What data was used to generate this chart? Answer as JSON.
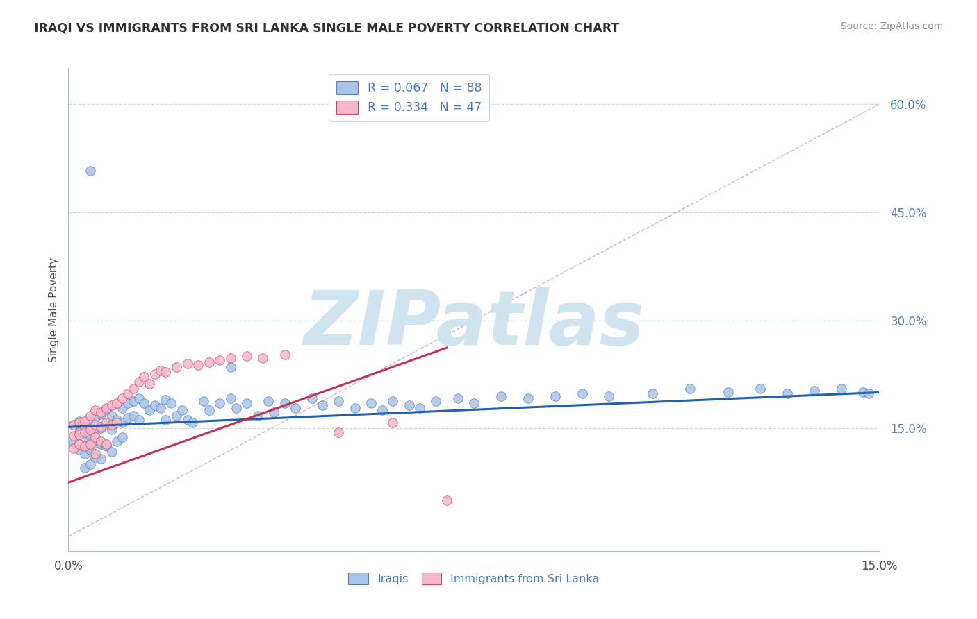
{
  "title": "IRAQI VS IMMIGRANTS FROM SRI LANKA SINGLE MALE POVERTY CORRELATION CHART",
  "source": "Source: ZipAtlas.com",
  "ylabel": "Single Male Poverty",
  "xlim": [
    0.0,
    0.15
  ],
  "ylim": [
    -0.02,
    0.65
  ],
  "ytick_vals": [
    0.15,
    0.3,
    0.45,
    0.6
  ],
  "ytick_labels": [
    "15.0%",
    "30.0%",
    "45.0%",
    "60.0%"
  ],
  "xtick_vals": [
    0.0,
    0.15
  ],
  "xtick_labels": [
    "0.0%",
    "15.0%"
  ],
  "iraqi_color": "#a8c4e8",
  "srilanka_color": "#f5b8c8",
  "iraqi_edge_color": "#5080c0",
  "srilanka_edge_color": "#d04868",
  "iraqi_trend_color": "#2060b0",
  "srilanka_trend_color": "#c83050",
  "diagonal_color": "#e0a0b0",
  "background_color": "#ffffff",
  "grid_color": "#c8d8e8",
  "watermark": "ZIPatlas",
  "watermark_color": "#d0e4f0",
  "legend_label_iraqi": "R = 0.067   N = 88",
  "legend_label_srilanka": "R = 0.334   N = 47",
  "legend_label_iraqi_short": "Iraqis",
  "legend_label_srilanka_short": "Immigrants from Sri Lanka",
  "legend_text_color": "#4878c8",
  "title_color": "#303030",
  "source_color": "#909090",
  "ylabel_color": "#505050",
  "ytick_color": "#5080c0",
  "xtick_color": "#505050",
  "iraqi_x": [
    0.001,
    0.001,
    0.002,
    0.002,
    0.002,
    0.003,
    0.003,
    0.003,
    0.003,
    0.004,
    0.004,
    0.004,
    0.004,
    0.005,
    0.005,
    0.005,
    0.005,
    0.006,
    0.006,
    0.006,
    0.006,
    0.007,
    0.007,
    0.007,
    0.008,
    0.008,
    0.008,
    0.009,
    0.009,
    0.01,
    0.01,
    0.01,
    0.011,
    0.011,
    0.012,
    0.012,
    0.013,
    0.013,
    0.014,
    0.015,
    0.016,
    0.017,
    0.018,
    0.018,
    0.019,
    0.02,
    0.021,
    0.022,
    0.023,
    0.025,
    0.026,
    0.028,
    0.03,
    0.031,
    0.033,
    0.035,
    0.037,
    0.038,
    0.04,
    0.042,
    0.045,
    0.047,
    0.05,
    0.053,
    0.056,
    0.058,
    0.06,
    0.063,
    0.065,
    0.068,
    0.072,
    0.075,
    0.08,
    0.085,
    0.09,
    0.095,
    0.1,
    0.108,
    0.115,
    0.122,
    0.128,
    0.133,
    0.138,
    0.143,
    0.147,
    0.148,
    0.004,
    0.03
  ],
  "iraqi_y": [
    0.155,
    0.13,
    0.16,
    0.145,
    0.12,
    0.15,
    0.135,
    0.115,
    0.095,
    0.16,
    0.14,
    0.12,
    0.1,
    0.165,
    0.148,
    0.13,
    0.11,
    0.17,
    0.15,
    0.128,
    0.108,
    0.175,
    0.155,
    0.125,
    0.168,
    0.148,
    0.118,
    0.162,
    0.132,
    0.178,
    0.158,
    0.138,
    0.185,
    0.165,
    0.188,
    0.168,
    0.192,
    0.162,
    0.185,
    0.175,
    0.182,
    0.178,
    0.19,
    0.162,
    0.185,
    0.168,
    0.175,
    0.162,
    0.158,
    0.188,
    0.175,
    0.185,
    0.192,
    0.178,
    0.185,
    0.168,
    0.188,
    0.172,
    0.185,
    0.178,
    0.192,
    0.182,
    0.188,
    0.178,
    0.185,
    0.175,
    0.188,
    0.182,
    0.178,
    0.188,
    0.192,
    0.185,
    0.195,
    0.192,
    0.195,
    0.198,
    0.195,
    0.198,
    0.205,
    0.2,
    0.205,
    0.198,
    0.202,
    0.205,
    0.2,
    0.198,
    0.508,
    0.235
  ],
  "srilanka_x": [
    0.001,
    0.001,
    0.001,
    0.002,
    0.002,
    0.002,
    0.003,
    0.003,
    0.003,
    0.004,
    0.004,
    0.004,
    0.005,
    0.005,
    0.005,
    0.005,
    0.006,
    0.006,
    0.006,
    0.007,
    0.007,
    0.007,
    0.008,
    0.008,
    0.009,
    0.009,
    0.01,
    0.011,
    0.012,
    0.013,
    0.014,
    0.015,
    0.016,
    0.017,
    0.018,
    0.02,
    0.022,
    0.024,
    0.026,
    0.028,
    0.03,
    0.033,
    0.036,
    0.04,
    0.05,
    0.06,
    0.07
  ],
  "srilanka_y": [
    0.155,
    0.14,
    0.122,
    0.158,
    0.142,
    0.128,
    0.16,
    0.145,
    0.125,
    0.168,
    0.148,
    0.128,
    0.175,
    0.155,
    0.138,
    0.115,
    0.172,
    0.152,
    0.132,
    0.178,
    0.158,
    0.128,
    0.182,
    0.155,
    0.185,
    0.158,
    0.192,
    0.198,
    0.205,
    0.215,
    0.222,
    0.212,
    0.225,
    0.23,
    0.228,
    0.235,
    0.24,
    0.238,
    0.242,
    0.245,
    0.248,
    0.25,
    0.248,
    0.252,
    0.145,
    0.158,
    0.05
  ]
}
